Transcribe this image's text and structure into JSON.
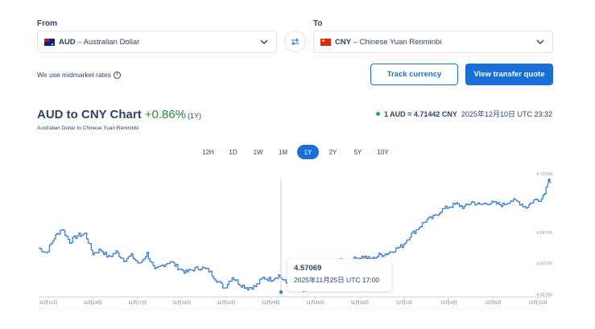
{
  "converter": {
    "from_label": "From",
    "to_label": "To",
    "from": {
      "code": "AUD",
      "name": "– Australian Dollar",
      "flag": "au-flag"
    },
    "to": {
      "code": "CNY",
      "name": "– Chinese Yuan Renminbi",
      "flag": "cn-flag"
    },
    "swap_icon": "swap-arrows-icon"
  },
  "midmarket_text": "We use midmarket rates",
  "buttons": {
    "track": "Track currency",
    "quote": "View transfer quote"
  },
  "chart_header": {
    "title": "AUD to CNY Chart",
    "change": "+0.86%",
    "period": "(1Y)",
    "subtitle": "Australian Dollar to Chinese Yuan Renminbi",
    "rate": "1 AUD = 4.71442 CNY",
    "timestamp": "2025年12月10日 UTC 23:32"
  },
  "ranges": [
    "12H",
    "1D",
    "1W",
    "1M",
    "1Y",
    "2Y",
    "5Y",
    "10Y"
  ],
  "active_range": "1Y",
  "colors": {
    "accent": "#1a6ed8",
    "line": "#3d7fd4",
    "positive": "#2b8a3e",
    "live_dot": "#2fa852"
  },
  "tooltip": {
    "value": "4.57069",
    "date": "2025年11月25日 UTC 17:00"
  },
  "chart_data": {
    "type": "line",
    "title": "AUD to CNY Chart",
    "x_ticks": [
      "11月11日",
      "11月14日",
      "11月17日",
      "11月19日",
      "11月22日",
      "11月24日",
      "11月26日",
      "11月29日",
      "12月1日",
      "12月4日",
      "12月6日",
      "12月10日"
    ],
    "y_ticks": [
      "4.72199",
      "4.64705",
      "4.60705",
      "4.56765"
    ],
    "ylim": [
      4.5677,
      4.722
    ],
    "series": [
      {
        "values": [
          4.627,
          4.621,
          4.64,
          4.652,
          4.635,
          4.643,
          4.645,
          4.62,
          4.625,
          4.615,
          4.622,
          4.612,
          4.617,
          4.606,
          4.62,
          4.598,
          4.605,
          4.61,
          4.602,
          4.596,
          4.6,
          4.602,
          4.598,
          4.586,
          4.576,
          4.59,
          4.581,
          4.576,
          4.578,
          4.589,
          4.587,
          4.592,
          4.582,
          4.585,
          4.571,
          4.577,
          4.576,
          4.602,
          4.603,
          4.61,
          4.608,
          4.614,
          4.616,
          4.612,
          4.618,
          4.62,
          4.625,
          4.63,
          4.643,
          4.652,
          4.662,
          4.666,
          4.675,
          4.68,
          4.683,
          4.679,
          4.686,
          4.682,
          4.685,
          4.684,
          4.682,
          4.688,
          4.686,
          4.679,
          4.688,
          4.69,
          4.714
        ]
      }
    ],
    "grid": false,
    "crosshair_value": "4.57069"
  }
}
